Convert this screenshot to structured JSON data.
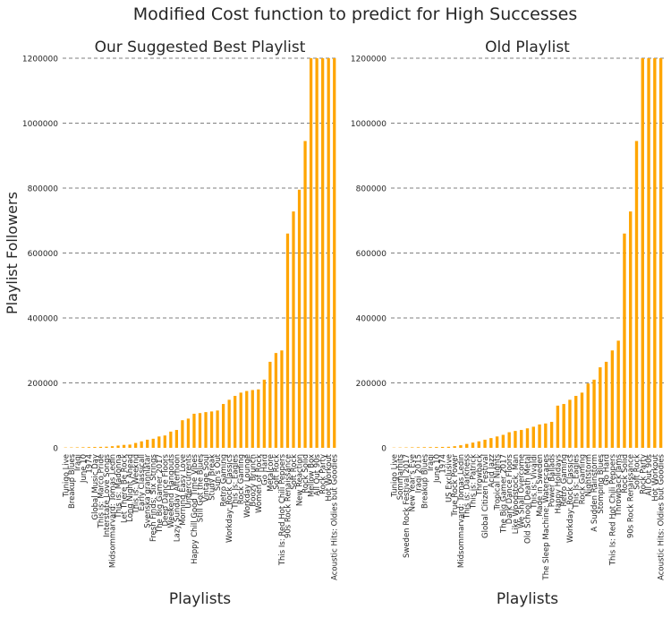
{
  "suptitle": "Modified Cost function to predict for High Successes",
  "chart_data": [
    {
      "type": "bar",
      "title": "Our Suggested Best Playlist",
      "xlabel": "Playlists",
      "ylabel": "Playlist Followers",
      "ylim": [
        0,
        1200000
      ],
      "yticks": [
        0,
        200000,
        400000,
        600000,
        800000,
        1000000,
        1200000
      ],
      "grid": "y-dashed",
      "bar_color": "#ffa500",
      "categories": [
        "Tunigo Live",
        "Breakup Blues",
        "Iraqi",
        "June 10",
        "1974",
        "Global Music Day",
        "This is: Marco Pride",
        "Interstate Love Songs",
        "Midsommarvard: Tomas Ledin",
        "This is: Madonna",
        "Let There Be Rock",
        "Long Night Ahead",
        "This is: Weeknd",
        "Early Classicall",
        "Svenska grannlåtar",
        "Fresh Finds: Six Strings",
        "The Big Gamer 2017",
        "Deep Dance Floors",
        "Weekend Hangouts",
        "Lazy Sunday Afternoon",
        "Morning Easy Love",
        "Undercurrents",
        "Happy Chill Good Time Vibes",
        "Still Got the Blues",
        "Vintage Soul",
        "Study Break",
        "Sun's Out",
        "Retro Gaming",
        "Workday: Rock Classics",
        "This Is: Eagles",
        "Rock Gaming",
        "Workday Lounge",
        "Boozy Brunch",
        "Women of Rock",
        "Go Hard",
        "Metalcore",
        "Soft Rock",
        "This Is: Red Hot Chili Peppers",
        "90s Rock Renaissance",
        "Soft Rock",
        "New Reaction",
        "Rock Solid",
        "Mellow Box",
        "All Out 90s",
        "Rock Party",
        "Hot Workout",
        "Acoustic Hits: Oldies but Goodies"
      ],
      "values": [
        1000,
        1200,
        1500,
        1800,
        2200,
        2600,
        3000,
        3500,
        5000,
        7000,
        9000,
        10000,
        15000,
        20000,
        25000,
        28000,
        35000,
        38000,
        50000,
        55000,
        85000,
        90000,
        105000,
        107000,
        110000,
        112000,
        115000,
        135000,
        148000,
        160000,
        170000,
        175000,
        178000,
        180000,
        210000,
        265000,
        292000,
        300000,
        660000,
        728000,
        795000,
        945000,
        1200000,
        1200000,
        1200000,
        1200000,
        1200000
      ]
    },
    {
      "type": "bar",
      "title": "Old Playlist",
      "xlabel": "Playlists",
      "ylabel": "",
      "ylim": [
        0,
        1200000
      ],
      "yticks": [
        0,
        200000,
        400000,
        600000,
        800000,
        1000000,
        1200000
      ],
      "grid": "y-dashed",
      "bar_color": "#ffa500",
      "categories": [
        "Tunigo Live",
        "Sommarhits",
        "Sweden Rock Festival 2017",
        "New Year's Eve",
        "Iraqi 2015",
        "Breakup Blues",
        "Iraqi",
        "June 10",
        "1974",
        "US Exclusive",
        "True Rock Power",
        "Midsommarvard: Tomas Ledin",
        "This is: Darkness",
        "This is: Patrick",
        "Throwback",
        "Global Citizen Festival",
        "Acid Jazz",
        "Tropical Nights",
        "The Big Gamer 2017",
        "Dark Dance Floors",
        "Like Woodstock, Man",
        "We Shall Overcome",
        "Old School Death Metal",
        "This is: Vivaldi",
        "Made in Sweden",
        "The Sleep Machine: Waterscapes",
        "Power Ballads",
        "Happy Holidays",
        "Retro Gaming",
        "Workday: Rock Classics",
        "This Is: Eagles",
        "Rock Gaming",
        "Nightstorm",
        "A Sudden Rainstorm",
        "Stomping Blues",
        "Go Hard",
        "This Is: Red Hot Chili Peppers",
        "Throwback Jams",
        "Rock Solid",
        "90s Rock Renaissance",
        "Soft Rock",
        "Rock Party",
        "All Out 90s",
        "Hot Workout",
        "Acoustic Hits: Oldies but Goodies"
      ],
      "values": [
        800,
        1000,
        1200,
        1500,
        1800,
        2000,
        2200,
        2500,
        2800,
        3200,
        5000,
        8000,
        12000,
        16000,
        20000,
        25000,
        30000,
        35000,
        40000,
        48000,
        52000,
        55000,
        60000,
        65000,
        72000,
        75000,
        80000,
        130000,
        135000,
        148000,
        160000,
        170000,
        198000,
        210000,
        248000,
        265000,
        300000,
        330000,
        660000,
        728000,
        945000,
        1200000,
        1200000,
        1200000,
        1200000
      ]
    }
  ]
}
